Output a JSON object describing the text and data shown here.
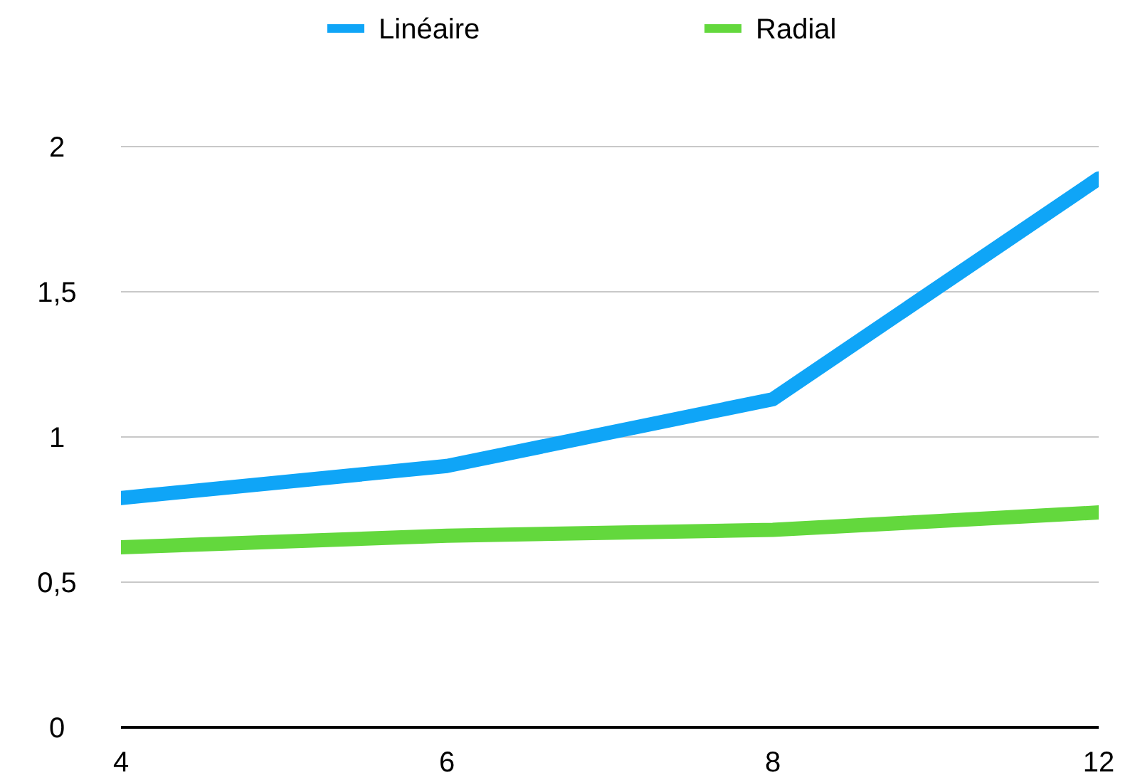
{
  "chart_data": {
    "type": "line",
    "categories": [
      "4",
      "6",
      "8",
      "12"
    ],
    "series": [
      {
        "name": "Linéaire",
        "color": "#0fa5f7",
        "values": [
          0.79,
          0.9,
          1.13,
          1.89
        ]
      },
      {
        "name": "Radial",
        "color": "#63d83d",
        "values": [
          0.62,
          0.66,
          0.68,
          0.74
        ]
      }
    ],
    "ylim": [
      0,
      2
    ],
    "yticks": [
      0,
      {
        "value": 0.5,
        "label": "0,5"
      },
      1,
      {
        "value": 1.5,
        "label": "1,5"
      },
      2
    ],
    "grid": "y",
    "legend": "top",
    "marker": "none",
    "line_style": "solid"
  }
}
